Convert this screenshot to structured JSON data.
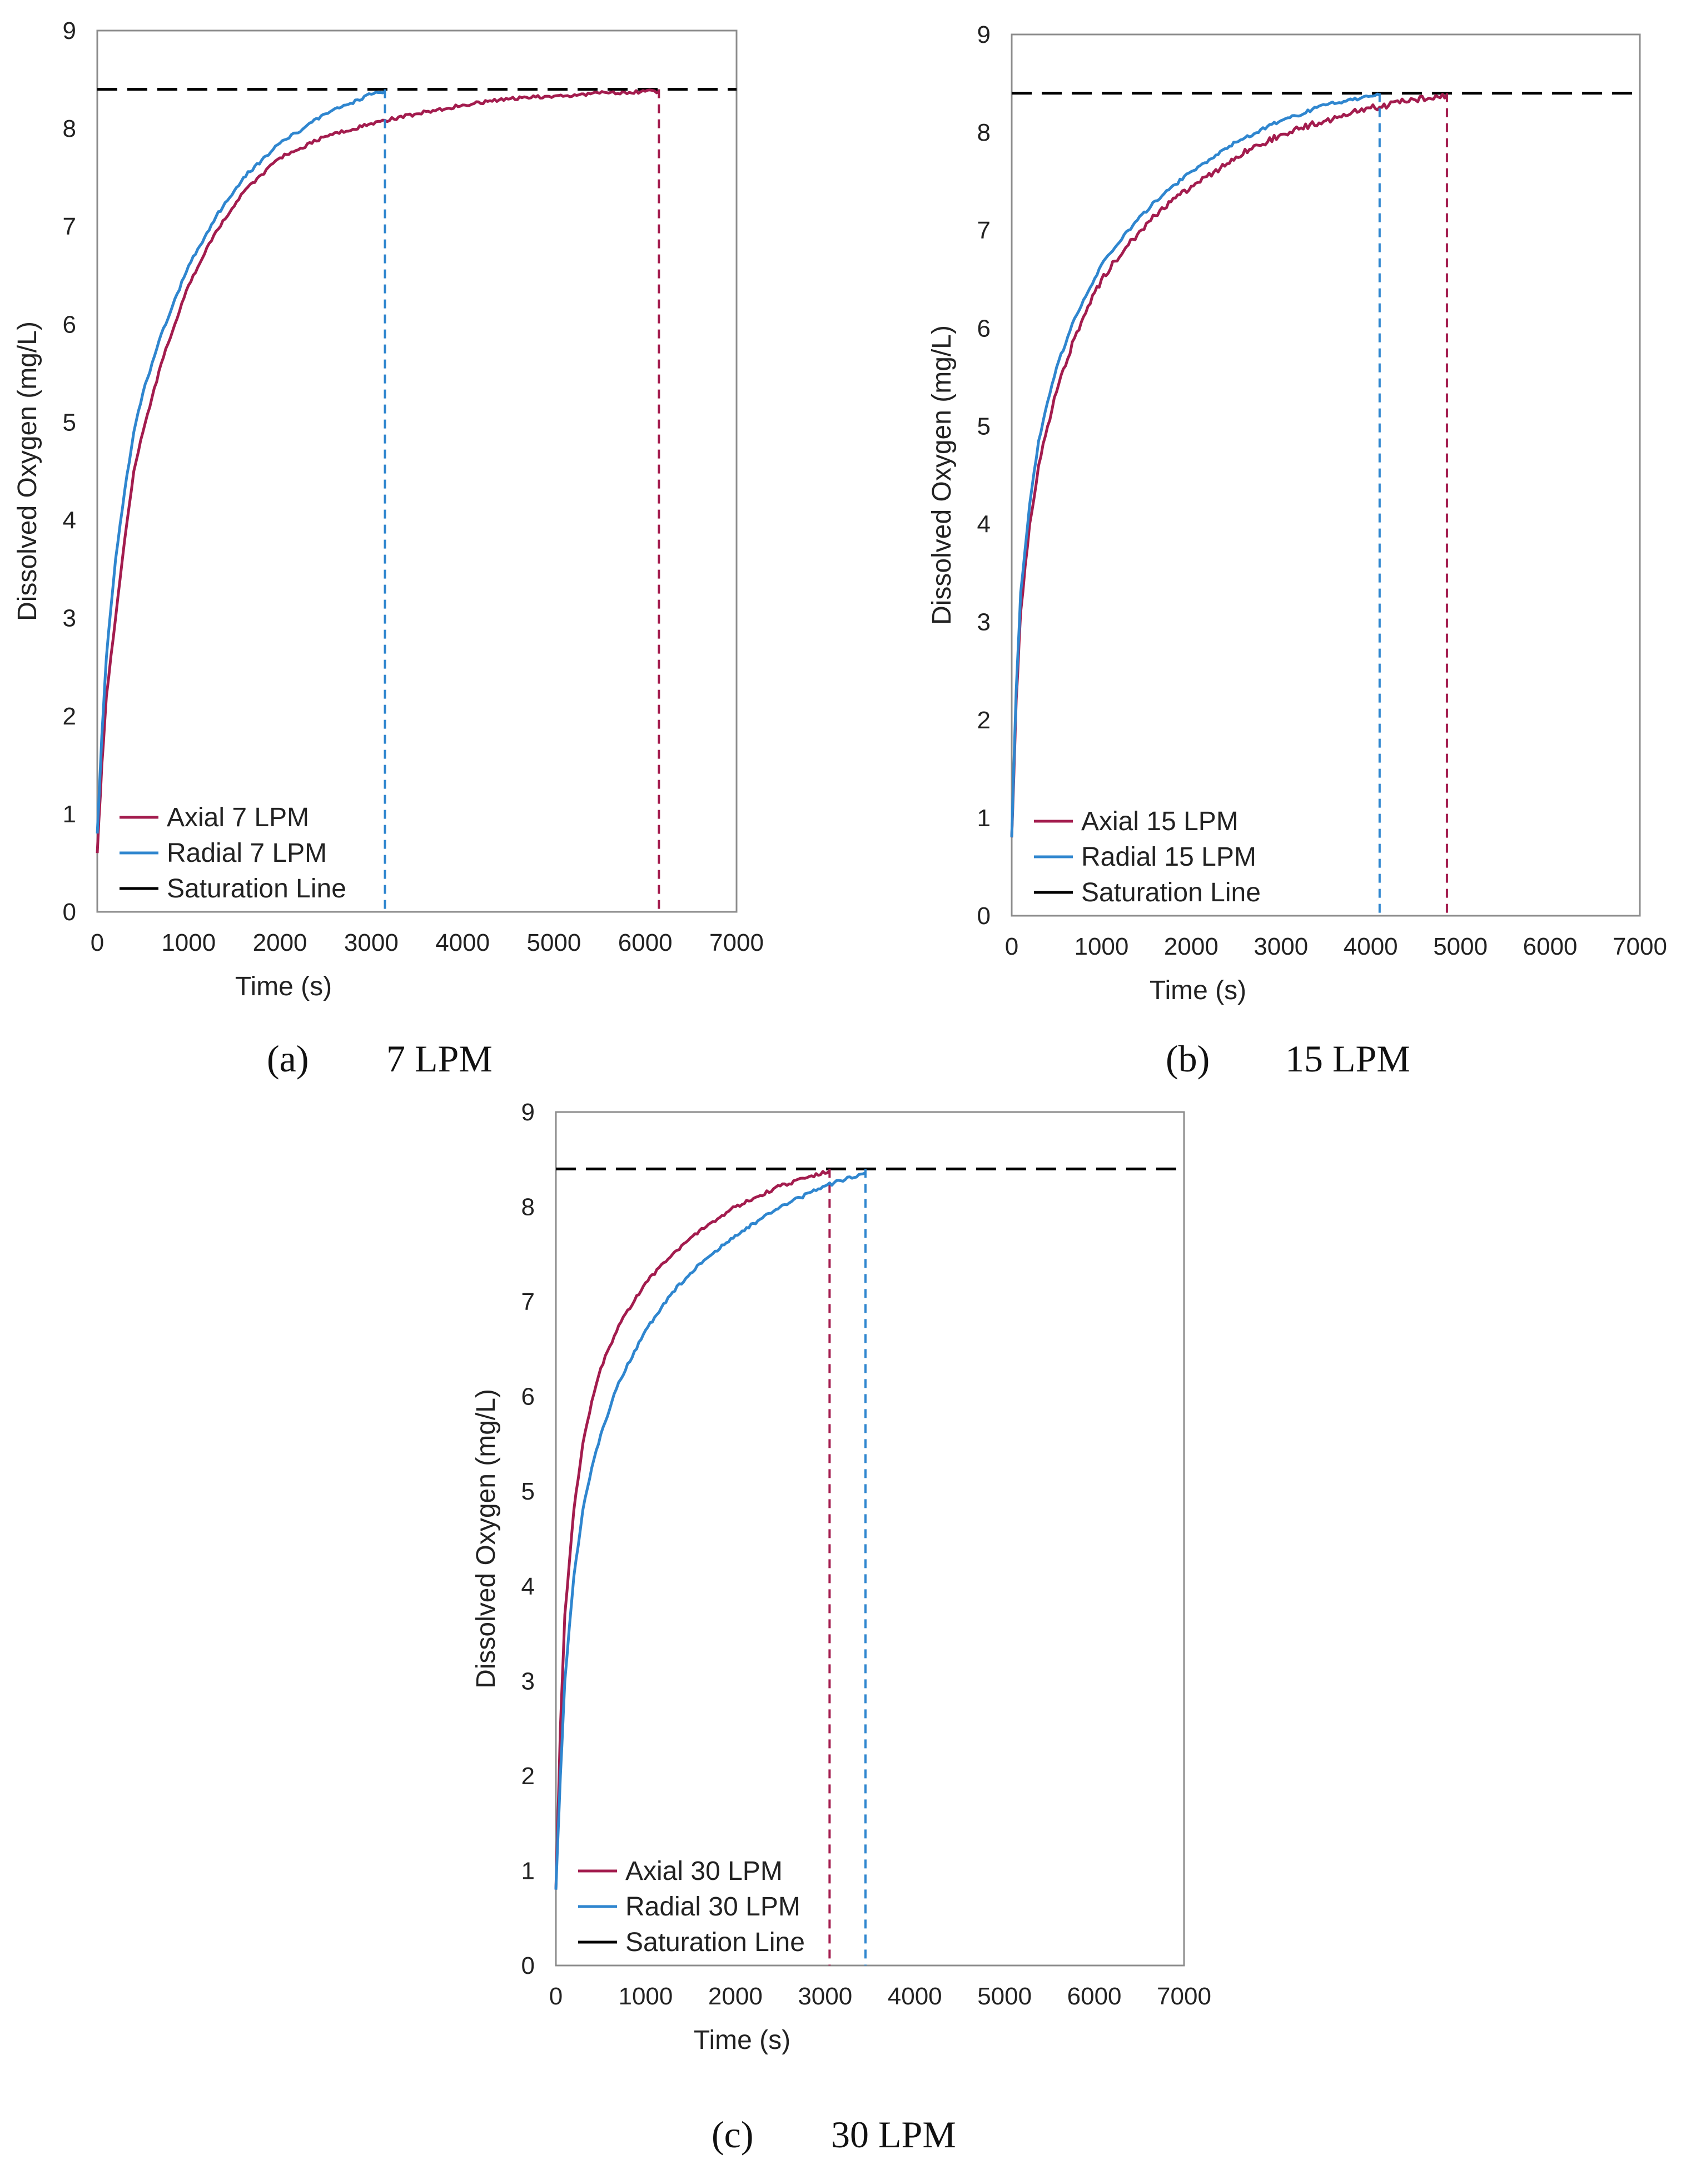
{
  "colors": {
    "axial": "#a31c4e",
    "radial": "#2f86cf",
    "saturation": "#000000",
    "frame": "#8c8c8c"
  },
  "chart_data": [
    {
      "type": "line",
      "caption_letter": "(a)",
      "caption_text": "7 LPM",
      "xlabel": "Time (s)",
      "ylabel": "Dissolved Oxygen (mg/L)",
      "xlim": [
        0,
        7000
      ],
      "ylim": [
        0,
        9
      ],
      "x_ticks": [
        "0",
        "1000",
        "2000",
        "3000",
        "4000",
        "5000",
        "6000",
        "7000"
      ],
      "y_ticks": [
        "0",
        "1",
        "2",
        "3",
        "4",
        "5",
        "6",
        "7",
        "8",
        "9"
      ],
      "saturation": 8.4,
      "legend": {
        "placement": "bottom-left",
        "entries": [
          "Axial 7 LPM",
          "Radial 7 LPM",
          "Saturation Line"
        ]
      },
      "series": [
        {
          "name": "Axial 7 LPM",
          "role": "axial",
          "end_time": 6150,
          "x": [
            0,
            50,
            100,
            200,
            300,
            400,
            500,
            700,
            1000,
            1300,
            1600,
            2000,
            2500,
            3000,
            3500,
            4000,
            4500,
            5000,
            5500,
            6000,
            6150
          ],
          "y": [
            0.6,
            1.5,
            2.2,
            3.0,
            3.8,
            4.5,
            4.9,
            5.6,
            6.4,
            6.95,
            7.35,
            7.7,
            7.92,
            8.05,
            8.15,
            8.24,
            8.3,
            8.33,
            8.36,
            8.38,
            8.38
          ]
        },
        {
          "name": "Radial 7 LPM",
          "role": "radial",
          "end_time": 3150,
          "x": [
            0,
            50,
            100,
            200,
            300,
            400,
            500,
            700,
            1000,
            1300,
            1600,
            2000,
            2500,
            3000,
            3150
          ],
          "y": [
            0.8,
            1.8,
            2.6,
            3.6,
            4.3,
            4.9,
            5.3,
            5.9,
            6.6,
            7.1,
            7.5,
            7.85,
            8.15,
            8.35,
            8.38
          ]
        }
      ]
    },
    {
      "type": "line",
      "caption_letter": "(b)",
      "caption_text": "15 LPM",
      "xlabel": "Time (s)",
      "ylabel": "Dissolved Oxygen (mg/L)",
      "xlim": [
        0,
        7000
      ],
      "ylim": [
        0,
        9
      ],
      "x_ticks": [
        "0",
        "1000",
        "2000",
        "3000",
        "4000",
        "5000",
        "6000",
        "7000"
      ],
      "y_ticks": [
        "0",
        "1",
        "2",
        "3",
        "4",
        "5",
        "6",
        "7",
        "8",
        "9"
      ],
      "saturation": 8.4,
      "legend": {
        "placement": "bottom-left",
        "entries": [
          "Axial 15 LPM",
          "Radial 15 LPM",
          "Saturation Line"
        ]
      },
      "series": [
        {
          "name": "Axial 15 LPM",
          "role": "axial",
          "end_time": 4850,
          "x": [
            0,
            50,
            100,
            200,
            300,
            400,
            500,
            700,
            1000,
            1300,
            1600,
            2000,
            2500,
            3000,
            3500,
            4000,
            4500,
            4850
          ],
          "y": [
            0.8,
            2.2,
            3.1,
            4.0,
            4.6,
            5.0,
            5.35,
            5.9,
            6.5,
            6.85,
            7.15,
            7.45,
            7.75,
            7.98,
            8.12,
            8.25,
            8.33,
            8.38
          ]
        },
        {
          "name": "Radial 15 LPM",
          "role": "radial",
          "end_time": 4100,
          "x": [
            0,
            50,
            100,
            200,
            300,
            400,
            500,
            700,
            1000,
            1300,
            1600,
            2000,
            2500,
            3000,
            3500,
            4000,
            4100
          ],
          "y": [
            0.8,
            2.3,
            3.3,
            4.2,
            4.85,
            5.25,
            5.6,
            6.1,
            6.65,
            7.0,
            7.3,
            7.6,
            7.9,
            8.12,
            8.28,
            8.37,
            8.38
          ]
        }
      ]
    },
    {
      "type": "line",
      "caption_letter": "(c)",
      "caption_text": "30 LPM",
      "xlabel": "Time (s)",
      "ylabel": "Dissolved Oxygen (mg/L)",
      "xlim": [
        0,
        7000
      ],
      "ylim": [
        0,
        9
      ],
      "x_ticks": [
        "0",
        "1000",
        "2000",
        "3000",
        "4000",
        "5000",
        "6000",
        "7000"
      ],
      "y_ticks": [
        "0",
        "1",
        "2",
        "3",
        "4",
        "5",
        "6",
        "7",
        "8",
        "9"
      ],
      "saturation": 8.4,
      "legend": {
        "placement": "bottom-left",
        "entries": [
          "Axial 30 LPM",
          "Radial 30 LPM",
          "Saturation Line"
        ]
      },
      "series": [
        {
          "name": "Axial 30 LPM",
          "role": "axial",
          "end_time": 3050,
          "x": [
            0,
            50,
            100,
            200,
            300,
            400,
            500,
            700,
            1000,
            1300,
            1600,
            2000,
            2500,
            3050
          ],
          "y": [
            0.8,
            2.5,
            3.7,
            4.8,
            5.5,
            5.95,
            6.3,
            6.75,
            7.2,
            7.5,
            7.75,
            8.0,
            8.22,
            8.38
          ]
        },
        {
          "name": "Radial 30 LPM",
          "role": "radial",
          "end_time": 3450,
          "x": [
            0,
            50,
            100,
            200,
            300,
            400,
            500,
            700,
            1000,
            1300,
            1600,
            2000,
            2500,
            3000,
            3450
          ],
          "y": [
            0.8,
            2.0,
            3.0,
            4.1,
            4.8,
            5.25,
            5.6,
            6.15,
            6.7,
            7.1,
            7.4,
            7.7,
            8.0,
            8.22,
            8.36
          ]
        }
      ]
    }
  ]
}
